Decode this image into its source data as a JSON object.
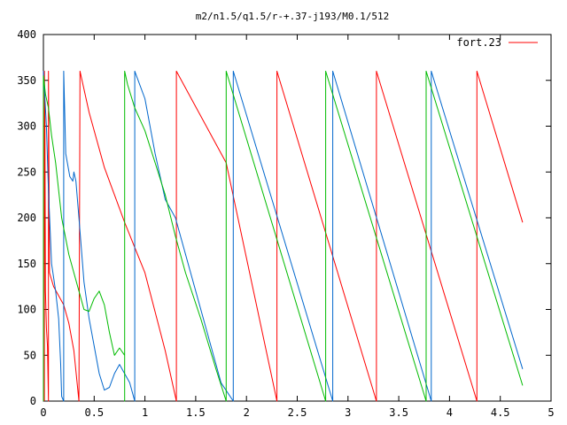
{
  "chart_data": {
    "type": "line",
    "title": "m2/n1.5/q1.5/r-+.37-j193/M0.1/512",
    "xlabel": "",
    "ylabel": "",
    "xlim": [
      0,
      5
    ],
    "ylim": [
      0,
      400
    ],
    "xticks": [
      0,
      0.5,
      1,
      1.5,
      2,
      2.5,
      3,
      3.5,
      4,
      4.5,
      5
    ],
    "xtick_labels": [
      "0",
      "0.5",
      "1",
      "1.5",
      "2",
      "2.5",
      "3",
      "3.5",
      "4",
      "4.5",
      "5"
    ],
    "yticks": [
      0,
      50,
      100,
      150,
      200,
      250,
      300,
      350,
      400
    ],
    "ytick_labels": [
      "0",
      "50",
      "100",
      "150",
      "200",
      "250",
      "300",
      "350",
      "400"
    ],
    "grid": false,
    "legend": {
      "position": "top-right",
      "entries": [
        {
          "label": "fort.23",
          "color": "#ff0000"
        }
      ]
    },
    "series": [
      {
        "name": "fort.23",
        "color": "#ff0000",
        "points": [
          [
            0.01,
            0
          ],
          [
            0.01,
            360
          ],
          [
            0.015,
            300
          ],
          [
            0.02,
            120
          ],
          [
            0.03,
            80
          ],
          [
            0.04,
            60
          ],
          [
            0.05,
            0
          ],
          [
            0.05,
            360
          ],
          [
            0.06,
            140
          ],
          [
            0.1,
            125
          ],
          [
            0.15,
            115
          ],
          [
            0.2,
            105
          ],
          [
            0.25,
            85
          ],
          [
            0.3,
            55
          ],
          [
            0.35,
            0
          ],
          [
            0.36,
            360
          ],
          [
            0.45,
            315
          ],
          [
            0.6,
            255
          ],
          [
            0.8,
            195
          ],
          [
            1.0,
            140
          ],
          [
            1.2,
            55
          ],
          [
            1.31,
            0
          ],
          [
            1.31,
            360
          ],
          [
            1.8,
            260
          ],
          [
            2.3,
            0
          ],
          [
            2.3,
            360
          ],
          [
            3.28,
            0
          ],
          [
            3.28,
            360
          ],
          [
            4.27,
            0
          ],
          [
            4.27,
            360
          ],
          [
            4.72,
            195
          ]
        ]
      },
      {
        "color": "#0066cc",
        "points": [
          [
            0,
            0
          ],
          [
            0,
            360
          ],
          [
            0.03,
            300
          ],
          [
            0.05,
            230
          ],
          [
            0.08,
            150
          ],
          [
            0.12,
            120
          ],
          [
            0.15,
            90
          ],
          [
            0.17,
            40
          ],
          [
            0.18,
            5
          ],
          [
            0.2,
            0
          ],
          [
            0.2,
            360
          ],
          [
            0.22,
            270
          ],
          [
            0.26,
            245
          ],
          [
            0.29,
            240
          ],
          [
            0.3,
            250
          ],
          [
            0.32,
            240
          ],
          [
            0.35,
            200
          ],
          [
            0.4,
            130
          ],
          [
            0.45,
            90
          ],
          [
            0.5,
            60
          ],
          [
            0.55,
            30
          ],
          [
            0.6,
            12
          ],
          [
            0.65,
            15
          ],
          [
            0.7,
            30
          ],
          [
            0.75,
            40
          ],
          [
            0.85,
            20
          ],
          [
            0.9,
            0
          ],
          [
            0.9,
            360
          ],
          [
            1.0,
            330
          ],
          [
            1.1,
            270
          ],
          [
            1.2,
            220
          ],
          [
            1.3,
            200
          ],
          [
            1.45,
            140
          ],
          [
            1.6,
            80
          ],
          [
            1.75,
            20
          ],
          [
            1.87,
            0
          ],
          [
            1.87,
            360
          ],
          [
            2.85,
            0
          ],
          [
            2.85,
            360
          ],
          [
            3.82,
            0
          ],
          [
            3.82,
            360
          ],
          [
            4.72,
            35
          ]
        ]
      },
      {
        "color": "#00bb00",
        "points": [
          [
            0,
            0
          ],
          [
            0,
            355
          ],
          [
            0.02,
            335
          ],
          [
            0.05,
            320
          ],
          [
            0.08,
            290
          ],
          [
            0.12,
            260
          ],
          [
            0.18,
            200
          ],
          [
            0.25,
            160
          ],
          [
            0.3,
            140
          ],
          [
            0.35,
            120
          ],
          [
            0.4,
            100
          ],
          [
            0.45,
            98
          ],
          [
            0.5,
            112
          ],
          [
            0.55,
            120
          ],
          [
            0.6,
            105
          ],
          [
            0.65,
            75
          ],
          [
            0.7,
            50
          ],
          [
            0.75,
            58
          ],
          [
            0.8,
            50
          ],
          [
            0.8,
            0
          ],
          [
            0.8,
            360
          ],
          [
            0.83,
            345
          ],
          [
            0.9,
            320
          ],
          [
            1.0,
            295
          ],
          [
            1.1,
            260
          ],
          [
            1.2,
            225
          ],
          [
            1.3,
            180
          ],
          [
            1.4,
            140
          ],
          [
            1.55,
            90
          ],
          [
            1.7,
            35
          ],
          [
            1.8,
            0
          ],
          [
            1.8,
            360
          ],
          [
            2.78,
            0
          ],
          [
            2.78,
            360
          ],
          [
            3.77,
            0
          ],
          [
            3.77,
            360
          ],
          [
            4.72,
            17
          ]
        ]
      }
    ]
  }
}
